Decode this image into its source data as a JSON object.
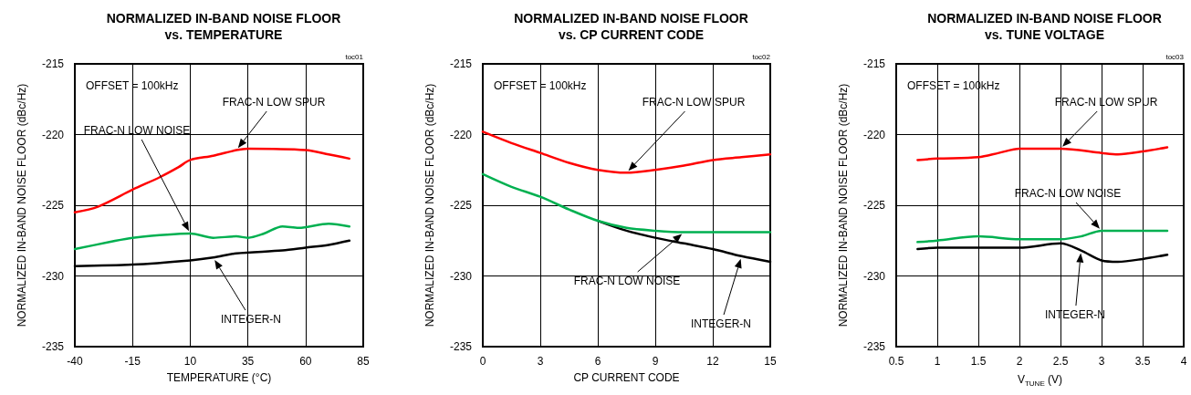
{
  "chart_data": [
    {
      "type": "line",
      "title": "NORMALIZED IN-BAND NOISE FLOOR\nvs. TEMPERATURE",
      "xlabel": "TEMPERATURE (°C)",
      "ylabel": "NORMALIZED IN-BAND NOISE FLOOR (dBc/Hz)",
      "xlim": [
        -40,
        85
      ],
      "xticks": [
        -40,
        -15,
        10,
        35,
        60,
        85
      ],
      "ylim": [
        -235,
        -215
      ],
      "yticks": [
        -235,
        -230,
        -225,
        -220,
        -215
      ],
      "grid": true,
      "marker": "none",
      "line_style": "solid",
      "annotations": [
        "OFFSET = 100kHz",
        "toc01"
      ],
      "series": [
        {
          "name": "FRAC-N LOW SPUR",
          "color": "#ff0000",
          "x": [
            -40,
            -30,
            -15,
            -3,
            5,
            10,
            20,
            30,
            35,
            60,
            70,
            79
          ],
          "values": [
            -225.5,
            -225.1,
            -223.9,
            -223.0,
            -222.3,
            -221.8,
            -221.5,
            -221.1,
            -221.0,
            -221.1,
            -221.4,
            -221.7
          ]
        },
        {
          "name": "FRAC-N LOW NOISE",
          "color": "#00b050",
          "x": [
            -40,
            -25,
            -15,
            10,
            20,
            30,
            35,
            42,
            50,
            57,
            70,
            79
          ],
          "values": [
            -228.1,
            -227.6,
            -227.3,
            -227.0,
            -227.3,
            -227.2,
            -227.3,
            -227.0,
            -226.5,
            -226.6,
            -226.3,
            -226.5
          ]
        },
        {
          "name": "INTEGER-N",
          "color": "#000000",
          "x": [
            -40,
            -15,
            10,
            20,
            30,
            50,
            60,
            70,
            79
          ],
          "values": [
            -229.3,
            -229.2,
            -228.9,
            -228.7,
            -228.4,
            -228.2,
            -228.0,
            -227.8,
            -227.5
          ]
        }
      ]
    },
    {
      "type": "line",
      "title": "NORMALIZED IN-BAND NOISE FLOOR\nvs. CP CURRENT CODE",
      "xlabel": "CP CURRENT CODE",
      "ylabel": "NORMALIZED IN-BAND NOISE FLOOR (dBc/Hz)",
      "xlim": [
        0,
        15
      ],
      "xticks": [
        0,
        3,
        6,
        9,
        12,
        15
      ],
      "ylim": [
        -235,
        -215
      ],
      "yticks": [
        -235,
        -230,
        -225,
        -220,
        -215
      ],
      "grid": true,
      "marker": "none",
      "line_style": "solid",
      "annotations": [
        "OFFSET = 100kHz",
        "toc02"
      ],
      "series": [
        {
          "name": "FRAC-N LOW SPUR",
          "color": "#ff0000",
          "x": [
            0,
            1.5,
            3,
            4.5,
            6,
            7.5,
            9,
            10.5,
            12,
            13.5,
            15
          ],
          "values": [
            -219.8,
            -220.6,
            -221.3,
            -222.0,
            -222.5,
            -222.7,
            -222.5,
            -222.2,
            -221.8,
            -221.6,
            -221.4
          ]
        },
        {
          "name": "FRAC-N LOW NOISE",
          "color": "#00b050",
          "x": [
            0,
            1.5,
            3,
            4.5,
            6,
            7.5,
            9,
            10.5,
            12,
            15
          ],
          "values": [
            -222.8,
            -223.7,
            -224.4,
            -225.3,
            -226.1,
            -226.6,
            -226.8,
            -226.9,
            -226.9,
            -226.9
          ]
        },
        {
          "name": "INTEGER-N",
          "color": "#000000",
          "x": [
            6,
            7.5,
            9,
            10.5,
            12,
            13.5,
            15
          ],
          "values": [
            -226.1,
            -226.8,
            -227.3,
            -227.7,
            -228.1,
            -228.6,
            -229.0
          ]
        }
      ]
    },
    {
      "type": "line",
      "title": "NORMALIZED IN-BAND NOISE FLOOR\nvs. TUNE VOLTAGE",
      "xlabel": "V$_{TUNE}$ (V)",
      "ylabel": "NORMALIZED IN-BAND NOISE FLOOR (dBc/Hz)",
      "xlim": [
        0.5,
        4
      ],
      "xticks": [
        0.5,
        1,
        1.5,
        2,
        2.5,
        3,
        3.5,
        4
      ],
      "ylim": [
        -235,
        -215
      ],
      "yticks": [
        -235,
        -230,
        -225,
        -220,
        -215
      ],
      "grid": true,
      "marker": "none",
      "line_style": "solid",
      "annotations": [
        "OFFSET = 100kHz",
        "toc03"
      ],
      "series": [
        {
          "name": "FRAC-N LOW SPUR",
          "color": "#ff0000",
          "x": [
            0.76,
            1,
            1.5,
            1.75,
            2,
            2.5,
            3,
            3.2,
            3.5,
            3.8
          ],
          "values": [
            -221.8,
            -221.7,
            -221.6,
            -221.3,
            -221.0,
            -221.0,
            -221.3,
            -221.4,
            -221.2,
            -220.9
          ]
        },
        {
          "name": "FRAC-N LOW NOISE",
          "color": "#00b050",
          "x": [
            0.76,
            1,
            1.5,
            2,
            2.5,
            2.75,
            3,
            3.5,
            3.8
          ],
          "values": [
            -227.6,
            -227.5,
            -227.2,
            -227.4,
            -227.4,
            -227.2,
            -226.8,
            -226.8,
            -226.8
          ]
        },
        {
          "name": "INTEGER-N",
          "color": "#000000",
          "x": [
            0.76,
            1,
            1.5,
            2,
            2.5,
            2.75,
            3,
            3.2,
            3.5,
            3.8
          ],
          "values": [
            -228.1,
            -228.0,
            -228.0,
            -228.0,
            -227.7,
            -228.2,
            -228.9,
            -229.0,
            -228.8,
            -228.5
          ]
        }
      ]
    }
  ]
}
